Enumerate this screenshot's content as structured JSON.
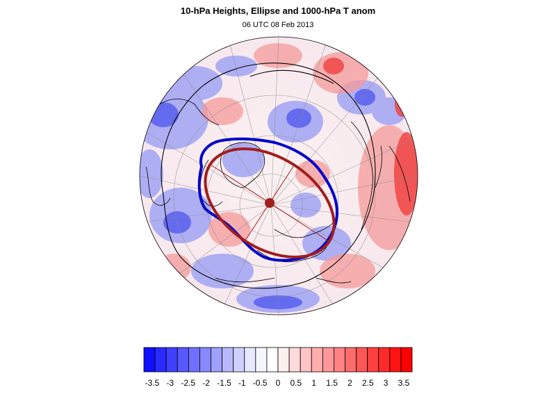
{
  "header": {
    "title": "10-hPa Heights, Ellipse and 1000-hPa T anom",
    "subtitle": "06 UTC 08 Feb 2013"
  },
  "map": {
    "projection": "north-polar-stereographic-orthographic",
    "fill": "1000-hPa temperature anomaly (shaded)",
    "contour_color": "#0000cc",
    "ellipse_color": "#a01e1e",
    "land_outline_color": "#000000"
  },
  "colorbar": {
    "levels": [
      "-3.5",
      "-3",
      "-2.5",
      "-2",
      "-1.5",
      "-1",
      "-0.5",
      "0",
      "0.5",
      "1",
      "1.5",
      "2",
      "2.5",
      "3",
      "3.5"
    ],
    "colors": [
      "#1010ff",
      "#2a2aff",
      "#4040ff",
      "#5858ff",
      "#7070ff",
      "#8888ff",
      "#a0a0ff",
      "#b8b8ff",
      "#d0d0ff",
      "#e8e8ff",
      "#f6f6ff",
      "#ffffff",
      "#fff0f0",
      "#ffdada",
      "#ffc4c4",
      "#ffaeae",
      "#ff9898",
      "#ff8282",
      "#ff6c6c",
      "#ff5656",
      "#ff4040",
      "#ff2a2a",
      "#ff1414",
      "#ff0000"
    ]
  }
}
